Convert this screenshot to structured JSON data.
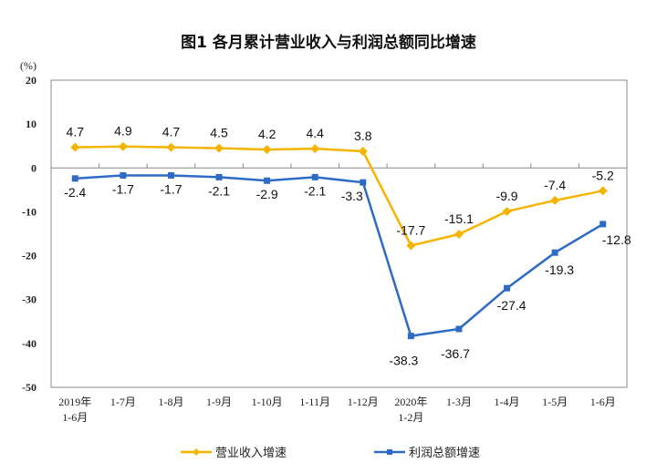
{
  "chart_data": {
    "type": "line",
    "title": "图1  各月累计营业收入与利润总额同比增速",
    "ylabel": "(%)",
    "ylim": [
      -50,
      20
    ],
    "yticks": [
      "20",
      "10",
      "0",
      "-10",
      "-20",
      "-30",
      "-40",
      "-50"
    ],
    "yticks_values": [
      20,
      10,
      0,
      -10,
      -20,
      -30,
      -40,
      -50
    ],
    "categories": [
      [
        "2019年",
        "1-6月"
      ],
      [
        "1-7月"
      ],
      [
        "1-8月"
      ],
      [
        "1-9月"
      ],
      [
        "1-10月"
      ],
      [
        "1-11月"
      ],
      [
        "1-12月"
      ],
      [
        "2020年",
        "1-2月"
      ],
      [
        "1-3月"
      ],
      [
        "1-4月"
      ],
      [
        "1-5月"
      ],
      [
        "1-6月"
      ]
    ],
    "grid": false,
    "legend_placement": "bottom",
    "series": [
      {
        "name": "营业收入增速",
        "color": "#F5B400",
        "marker": "diamond",
        "values": [
          4.7,
          4.9,
          4.7,
          4.5,
          4.2,
          4.4,
          3.8,
          -17.7,
          -15.1,
          -9.9,
          -7.4,
          -5.2
        ],
        "labels": [
          "4.7",
          "4.9",
          "4.7",
          "4.5",
          "4.2",
          "4.4",
          "3.8",
          "-17.7",
          "-15.1",
          "-9.9",
          "-7.4",
          "-5.2"
        ]
      },
      {
        "name": "利润总额增速",
        "color": "#2E6BC6",
        "marker": "square",
        "values": [
          -2.4,
          -1.7,
          -1.7,
          -2.1,
          -2.9,
          -2.1,
          -3.3,
          -38.3,
          -36.7,
          -27.4,
          -19.3,
          -12.8
        ],
        "labels": [
          "-2.4",
          "-1.7",
          "-1.7",
          "-2.1",
          "-2.9",
          "-2.1",
          "-3.3",
          "-38.3",
          "-36.7",
          "-27.4",
          "-19.3",
          "-12.8"
        ]
      }
    ]
  }
}
